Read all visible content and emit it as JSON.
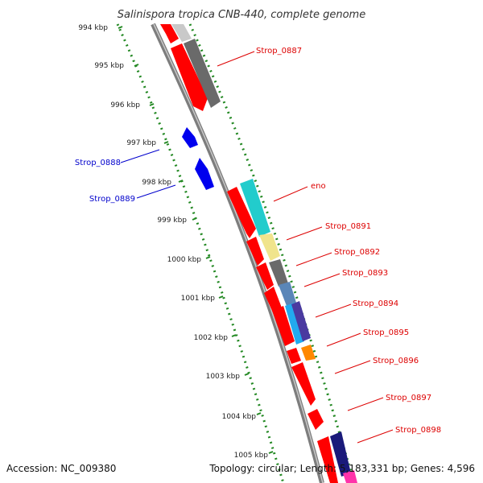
{
  "title": "Salinispora tropica CNB-440, complete genome",
  "accession": "Accession: NC_009380",
  "topology": "Topology: circular; Length: 5,183,331 bp; Genes: 4,596",
  "colors": {
    "forward_gene": "#ff0000",
    "reverse_gene": "#0000ff",
    "label_forward": "#dd0000",
    "label_reverse": "#0000cc",
    "backbone": "#888888",
    "tick": "#228822"
  },
  "scale": {
    "labels": [
      "994 kbp",
      "995 kbp",
      "996 kbp",
      "997 kbp",
      "998 kbp",
      "999 kbp",
      "1000 kbp",
      "1001 kbp",
      "1002 kbp",
      "1003 kbp",
      "1004 kbp",
      "1005 kbp"
    ]
  },
  "gene_labels": [
    {
      "name": "Strop_0887",
      "strand": "forward"
    },
    {
      "name": "Strop_0888",
      "strand": "reverse"
    },
    {
      "name": "Strop_0889",
      "strand": "reverse"
    },
    {
      "name": "eno",
      "strand": "forward"
    },
    {
      "name": "Strop_0891",
      "strand": "forward"
    },
    {
      "name": "Strop_0892",
      "strand": "forward"
    },
    {
      "name": "Strop_0893",
      "strand": "forward"
    },
    {
      "name": "Strop_0894",
      "strand": "forward"
    },
    {
      "name": "Strop_0895",
      "strand": "forward"
    },
    {
      "name": "Strop_0896",
      "strand": "forward"
    },
    {
      "name": "Strop_0897",
      "strand": "forward"
    },
    {
      "name": "Strop_0898",
      "strand": "forward"
    }
  ]
}
